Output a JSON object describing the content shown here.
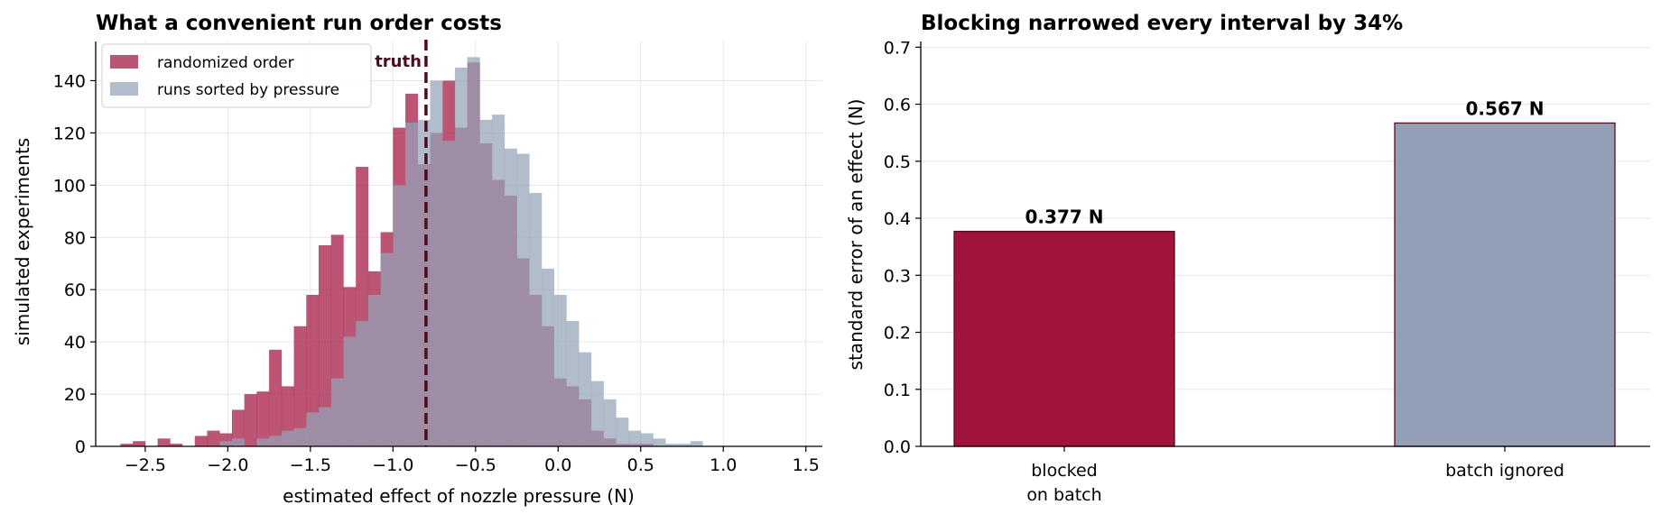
{
  "colors": {
    "randomized": "#a51c45",
    "sorted": "#94a3b8",
    "truth": "#4a0d1e",
    "bar_blocked": "#a0133a",
    "bar_ignored": "#929fb4",
    "bar_edge": "#5a0a20"
  },
  "chart_data": [
    {
      "type": "histogram",
      "title": "What a convenient run order costs",
      "xlabel": "estimated effect of nozzle pressure (N)",
      "ylabel": "simulated experiments",
      "xlim": [
        -2.8,
        1.6
      ],
      "ylim": [
        0,
        155
      ],
      "xticks": [
        -2.5,
        -2.0,
        -1.5,
        -1.0,
        -0.5,
        0.0,
        0.5,
        1.0,
        1.5
      ],
      "xtick_labels": [
        "−2.5",
        "−2.0",
        "−1.5",
        "−1.0",
        "−0.5",
        "0.0",
        "0.5",
        "1.0",
        "1.5"
      ],
      "yticks": [
        0,
        20,
        40,
        60,
        80,
        100,
        120,
        140
      ],
      "ytick_labels": [
        "0",
        "20",
        "40",
        "60",
        "80",
        "100",
        "120",
        "140"
      ],
      "grid": true,
      "legend_position": "top-left",
      "annotation": {
        "label": "truth",
        "x": -0.8
      },
      "series": [
        {
          "name": "randomized order",
          "bin_start": -2.65,
          "bin_width": 0.075,
          "counts": [
            1,
            2,
            0,
            3,
            1,
            0,
            4,
            6,
            5,
            14,
            20,
            21,
            37,
            23,
            46,
            58,
            77,
            81,
            61,
            107,
            67,
            82,
            122,
            135,
            108,
            120,
            140,
            122,
            147,
            116,
            102,
            96,
            72,
            58,
            46,
            26,
            23,
            18,
            6,
            3,
            1,
            1,
            1
          ]
        },
        {
          "name": "runs sorted by pressure",
          "bin_start": -2.05,
          "bin_width": 0.075,
          "counts": [
            2,
            3,
            0,
            3,
            4,
            6,
            7,
            13,
            15,
            26,
            42,
            48,
            58,
            74,
            100,
            124,
            125,
            140,
            117,
            145,
            149,
            125,
            127,
            114,
            112,
            97,
            68,
            58,
            48,
            36,
            25,
            18,
            11,
            6,
            5,
            3,
            1,
            1,
            2
          ]
        }
      ]
    },
    {
      "type": "bar",
      "title": "Blocking narrowed every interval by 34%",
      "xlabel": "",
      "ylabel": "standard error of an effect (N)",
      "ylim": [
        0,
        0.71
      ],
      "yticks": [
        0.0,
        0.1,
        0.2,
        0.3,
        0.4,
        0.5,
        0.6,
        0.7
      ],
      "ytick_labels": [
        "0.0",
        "0.1",
        "0.2",
        "0.3",
        "0.4",
        "0.5",
        "0.6",
        "0.7"
      ],
      "grid": true,
      "categories": [
        "blocked\non batch",
        "batch ignored"
      ],
      "values": [
        0.377,
        0.567
      ],
      "value_labels": [
        "0.377 N",
        "0.567 N"
      ]
    }
  ]
}
